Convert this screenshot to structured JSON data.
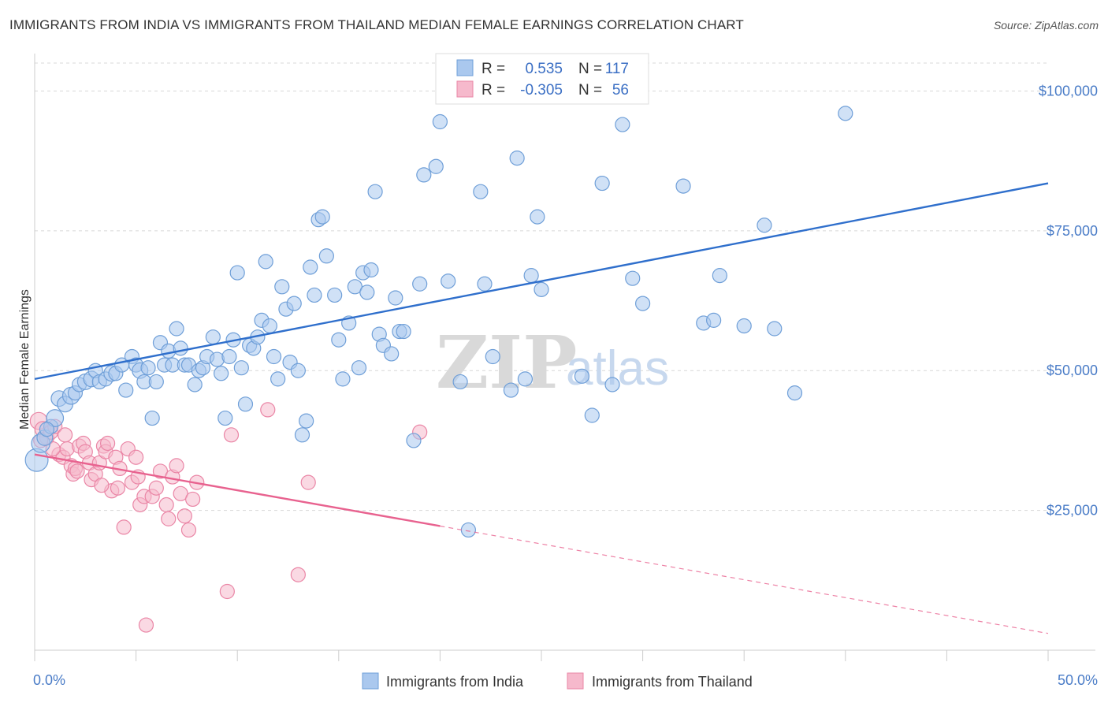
{
  "header": {
    "title": "IMMIGRANTS FROM INDIA VS IMMIGRANTS FROM THAILAND MEDIAN FEMALE EARNINGS CORRELATION CHART",
    "source": "Source: ZipAtlas.com"
  },
  "stats": {
    "india": {
      "r_label": "R =",
      "r_value": "0.535",
      "n_label": "N =",
      "n_value": "117"
    },
    "thailand": {
      "r_label": "R =",
      "r_value": "-0.305",
      "n_label": "N =",
      "n_value": "56"
    }
  },
  "watermark": {
    "zip": "ZIP",
    "atlas": "atlas"
  },
  "colors": {
    "india_fill": "#aac8ee",
    "india_stroke": "#6f9fd8",
    "india_line": "#2f6fcc",
    "thailand_fill": "#f6b9cc",
    "thailand_stroke": "#ea86a6",
    "thailand_line": "#e8628f",
    "grid": "#d8d8d8",
    "tick_label": "#4a7cc7"
  },
  "chart_data": {
    "type": "scatter",
    "title": "IMMIGRANTS FROM INDIA VS IMMIGRANTS FROM THAILAND MEDIAN FEMALE EARNINGS CORRELATION CHART",
    "xlabel": "",
    "ylabel": "Median Female Earnings",
    "xlim": [
      0,
      50
    ],
    "ylim": [
      0,
      105000
    ],
    "x_tick_labels": [
      "0.0%",
      "50.0%"
    ],
    "y_ticks": [
      25000,
      50000,
      75000,
      100000
    ],
    "y_tick_labels": [
      "$25,000",
      "$50,000",
      "$75,000",
      "$100,000"
    ],
    "grid": true,
    "legend_position": "bottom-center",
    "series": [
      {
        "name": "Immigrants from India",
        "trend": {
          "x0": 0,
          "y0": 48500,
          "x1": 50,
          "y1": 83500,
          "dashed_from": null
        },
        "points": [
          [
            0.1,
            34000,
            1.6
          ],
          [
            0.3,
            37000,
            1.3
          ],
          [
            0.5,
            38000,
            1.1
          ],
          [
            0.8,
            40000,
            1.0
          ],
          [
            1.0,
            41500,
            1.2
          ],
          [
            1.2,
            45000,
            1.1
          ],
          [
            1.5,
            44000,
            1.1
          ],
          [
            1.8,
            45500,
            1.2
          ],
          [
            2.0,
            46000,
            1.0
          ],
          [
            2.2,
            47500,
            1.0
          ],
          [
            2.5,
            48000,
            1.1
          ],
          [
            2.8,
            48500,
            1.1
          ],
          [
            3.0,
            50000,
            1.0
          ],
          [
            3.2,
            48000,
            1.0
          ],
          [
            3.5,
            48500,
            1.0
          ],
          [
            3.8,
            49500,
            1.1
          ],
          [
            4.0,
            49500,
            1.0
          ],
          [
            4.3,
            51000,
            1.0
          ],
          [
            4.5,
            46500,
            1.0
          ],
          [
            4.8,
            52500,
            1.0
          ],
          [
            5.0,
            51000,
            1.0
          ],
          [
            5.2,
            50000,
            1.1
          ],
          [
            5.4,
            48000,
            1.0
          ],
          [
            5.6,
            50500,
            1.0
          ],
          [
            5.8,
            41500,
            1.0
          ],
          [
            6.0,
            48000,
            1.0
          ],
          [
            6.2,
            55000,
            1.0
          ],
          [
            6.4,
            51000,
            1.0
          ],
          [
            6.6,
            53500,
            1.0
          ],
          [
            6.8,
            51000,
            1.0
          ],
          [
            7.0,
            57500,
            1.0
          ],
          [
            7.2,
            54000,
            1.0
          ],
          [
            7.4,
            51000,
            1.0
          ],
          [
            7.6,
            51000,
            1.0
          ],
          [
            7.9,
            47500,
            1.0
          ],
          [
            8.1,
            50000,
            1.0
          ],
          [
            8.3,
            50500,
            1.0
          ],
          [
            8.5,
            52500,
            1.0
          ],
          [
            8.8,
            56000,
            1.0
          ],
          [
            9.0,
            52000,
            1.0
          ],
          [
            9.2,
            49500,
            1.0
          ],
          [
            9.4,
            41500,
            1.0
          ],
          [
            9.6,
            52500,
            1.0
          ],
          [
            9.8,
            55500,
            1.0
          ],
          [
            10.0,
            67500,
            1.0
          ],
          [
            10.2,
            50500,
            1.0
          ],
          [
            10.4,
            44000,
            1.0
          ],
          [
            10.6,
            54500,
            1.0
          ],
          [
            10.8,
            54000,
            1.0
          ],
          [
            11.0,
            56000,
            1.0
          ],
          [
            11.2,
            59000,
            1.0
          ],
          [
            11.4,
            69500,
            1.0
          ],
          [
            11.6,
            58000,
            1.0
          ],
          [
            11.8,
            52500,
            1.0
          ],
          [
            12.0,
            48500,
            1.0
          ],
          [
            12.2,
            65000,
            1.0
          ],
          [
            12.4,
            61000,
            1.0
          ],
          [
            12.6,
            51500,
            1.0
          ],
          [
            12.8,
            62000,
            1.0
          ],
          [
            13.0,
            50000,
            1.0
          ],
          [
            13.2,
            38500,
            1.0
          ],
          [
            13.4,
            41000,
            1.0
          ],
          [
            13.6,
            68500,
            1.0
          ],
          [
            13.8,
            63500,
            1.0
          ],
          [
            14.0,
            77000,
            1.0
          ],
          [
            14.2,
            77500,
            1.0
          ],
          [
            14.4,
            70500,
            1.0
          ],
          [
            14.8,
            63500,
            1.0
          ],
          [
            15.0,
            55500,
            1.0
          ],
          [
            15.2,
            48500,
            1.0
          ],
          [
            15.5,
            58500,
            1.0
          ],
          [
            15.8,
            65000,
            1.0
          ],
          [
            16.0,
            50500,
            1.0
          ],
          [
            16.2,
            67500,
            1.0
          ],
          [
            16.4,
            64000,
            1.0
          ],
          [
            16.6,
            68000,
            1.0
          ],
          [
            16.8,
            82000,
            1.0
          ],
          [
            17.0,
            56500,
            1.0
          ],
          [
            17.2,
            54500,
            1.0
          ],
          [
            17.6,
            53000,
            1.0
          ],
          [
            17.8,
            63000,
            1.0
          ],
          [
            18.0,
            57000,
            1.0
          ],
          [
            18.2,
            57000,
            1.0
          ],
          [
            18.7,
            37500,
            1.0
          ],
          [
            19.0,
            65500,
            1.0
          ],
          [
            19.2,
            85000,
            1.0
          ],
          [
            19.8,
            86500,
            1.0
          ],
          [
            20.0,
            94500,
            1.0
          ],
          [
            20.4,
            66000,
            1.0
          ],
          [
            21.0,
            48000,
            1.0
          ],
          [
            21.4,
            21500,
            1.0
          ],
          [
            22.0,
            82000,
            1.0
          ],
          [
            22.2,
            65500,
            1.0
          ],
          [
            22.6,
            52500,
            1.0
          ],
          [
            23.5,
            46500,
            1.0
          ],
          [
            23.8,
            88000,
            1.0
          ],
          [
            24.2,
            48500,
            1.0
          ],
          [
            24.5,
            67000,
            1.0
          ],
          [
            24.8,
            77500,
            1.0
          ],
          [
            25.0,
            64500,
            1.0
          ],
          [
            27.0,
            49000,
            1.0
          ],
          [
            27.5,
            42000,
            1.0
          ],
          [
            28.0,
            83500,
            1.0
          ],
          [
            28.5,
            47500,
            1.0
          ],
          [
            29.0,
            94000,
            1.0
          ],
          [
            29.5,
            66500,
            1.0
          ],
          [
            30.0,
            62000,
            1.0
          ],
          [
            32.0,
            83000,
            1.0
          ],
          [
            33.0,
            58500,
            1.0
          ],
          [
            33.5,
            59000,
            1.0
          ],
          [
            33.8,
            67000,
            1.0
          ],
          [
            35.0,
            58000,
            1.0
          ],
          [
            36.0,
            76000,
            1.0
          ],
          [
            36.5,
            57500,
            1.0
          ],
          [
            37.5,
            46000,
            1.0
          ],
          [
            40.0,
            96000,
            1.0
          ],
          [
            0.6,
            39500,
            1.0
          ]
        ]
      },
      {
        "name": "Immigrants from Thailand",
        "trend": {
          "x0": 0,
          "y0": 35000,
          "x1": 50,
          "y1": 3000,
          "dashed_from": 20
        },
        "points": [
          [
            0.2,
            41000,
            1.2
          ],
          [
            0.4,
            39500,
            1.1
          ],
          [
            0.6,
            38000,
            1.0
          ],
          [
            0.8,
            39000,
            1.0
          ],
          [
            1.0,
            40000,
            1.0
          ],
          [
            1.2,
            35000,
            1.0
          ],
          [
            1.4,
            34500,
            1.0
          ],
          [
            1.6,
            36000,
            1.0
          ],
          [
            1.8,
            33000,
            1.0
          ],
          [
            1.9,
            31500,
            1.0
          ],
          [
            2.0,
            32500,
            1.0
          ],
          [
            2.2,
            36500,
            1.0
          ],
          [
            2.4,
            37000,
            1.0
          ],
          [
            2.5,
            35500,
            1.0
          ],
          [
            2.7,
            33500,
            1.0
          ],
          [
            2.8,
            30500,
            1.0
          ],
          [
            3.0,
            31500,
            1.0
          ],
          [
            3.2,
            33500,
            1.0
          ],
          [
            3.4,
            36500,
            1.0
          ],
          [
            3.5,
            35500,
            1.0
          ],
          [
            3.6,
            37000,
            1.0
          ],
          [
            3.8,
            28500,
            1.0
          ],
          [
            4.0,
            34500,
            1.0
          ],
          [
            4.1,
            29000,
            1.0
          ],
          [
            4.2,
            32500,
            1.0
          ],
          [
            4.4,
            22000,
            1.0
          ],
          [
            4.6,
            36000,
            1.0
          ],
          [
            4.8,
            30000,
            1.0
          ],
          [
            5.0,
            34500,
            1.0
          ],
          [
            5.2,
            26000,
            1.0
          ],
          [
            5.4,
            27500,
            1.0
          ],
          [
            5.5,
            4500,
            1.0
          ],
          [
            5.8,
            27500,
            1.0
          ],
          [
            6.0,
            29000,
            1.0
          ],
          [
            6.2,
            32000,
            1.0
          ],
          [
            6.5,
            26000,
            1.0
          ],
          [
            6.6,
            23500,
            1.0
          ],
          [
            6.8,
            31000,
            1.0
          ],
          [
            7.0,
            33000,
            1.0
          ],
          [
            7.2,
            28000,
            1.0
          ],
          [
            7.4,
            24000,
            1.0
          ],
          [
            7.6,
            21500,
            1.0
          ],
          [
            7.8,
            27000,
            1.0
          ],
          [
            8.0,
            30000,
            1.0
          ],
          [
            9.5,
            10500,
            1.0
          ],
          [
            9.7,
            38500,
            1.0
          ],
          [
            11.5,
            43000,
            1.0
          ],
          [
            13.0,
            13500,
            1.0
          ],
          [
            13.5,
            30000,
            1.0
          ],
          [
            19.0,
            39000,
            1.0
          ],
          [
            0.3,
            37500,
            1.0
          ],
          [
            1.5,
            38500,
            1.0
          ],
          [
            2.1,
            32000,
            1.0
          ],
          [
            3.3,
            29500,
            1.0
          ],
          [
            5.1,
            31000,
            1.0
          ],
          [
            0.9,
            36000,
            1.0
          ]
        ]
      }
    ]
  }
}
